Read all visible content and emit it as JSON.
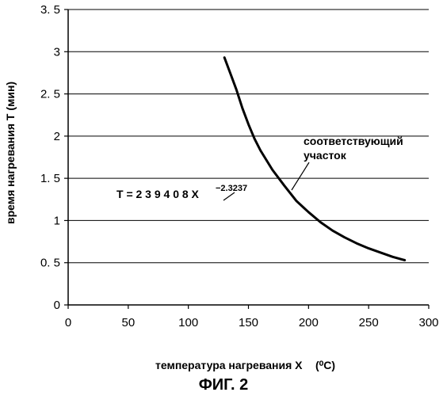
{
  "chart_data": {
    "type": "line",
    "xlabel": "температура нагревания X",
    "xlabel_unit": "(⁰C)",
    "ylabel": "время нагревания T (мин)",
    "caption": "ФИГ. 2",
    "xlim": [
      0,
      300
    ],
    "ylim": [
      0,
      3.5
    ],
    "x_ticks": [
      0,
      50,
      100,
      150,
      200,
      250,
      300
    ],
    "y_ticks": [
      0,
      0.5,
      1,
      1.5,
      2,
      2.5,
      3,
      3.5
    ],
    "x_tick_labels": [
      "0",
      "50",
      "100",
      "150",
      "200",
      "250",
      "300"
    ],
    "y_tick_labels": [
      "0",
      "0. 5",
      "1",
      "1. 5",
      "2",
      "2. 5",
      "3",
      "3. 5"
    ],
    "grid": "horizontal",
    "series": [
      {
        "x": [
          130,
          135,
          140,
          145,
          150,
          155,
          160,
          170,
          180,
          190,
          200,
          210,
          220,
          230,
          240,
          250,
          260,
          270,
          280
        ],
        "y": [
          2.93,
          2.74,
          2.55,
          2.33,
          2.14,
          1.97,
          1.83,
          1.6,
          1.41,
          1.23,
          1.1,
          0.98,
          0.88,
          0.8,
          0.73,
          0.67,
          0.62,
          0.57,
          0.53
        ]
      }
    ],
    "annotations": {
      "formula_main": "T = 2 3 9 4 0 8 X",
      "formula_exponent": "−2.3237",
      "region_line1": "соответствующий",
      "region_line2": "участок"
    }
  }
}
